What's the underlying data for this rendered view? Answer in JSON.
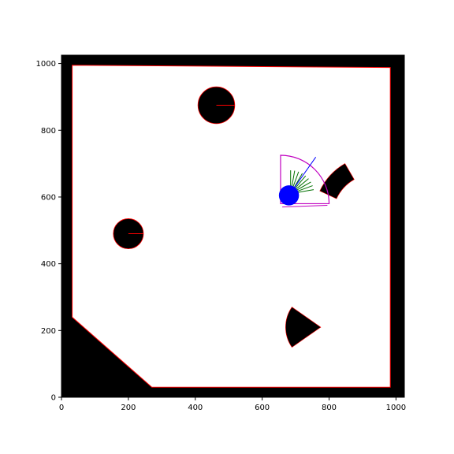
{
  "chart_data": {
    "type": "scatter",
    "title": "",
    "xlabel": "",
    "ylabel": "",
    "xlim": [
      0,
      1025
    ],
    "ylim": [
      0,
      1025
    ],
    "grid": false,
    "x_ticks": [
      0,
      200,
      400,
      600,
      800,
      1000
    ],
    "y_ticks": [
      0,
      200,
      400,
      600,
      800,
      1000
    ],
    "x_tick_labels": [
      "0",
      "200",
      "400",
      "600",
      "800",
      "1000"
    ],
    "y_tick_labels": [
      "0",
      "200",
      "400",
      "600",
      "800",
      "1000"
    ],
    "colors": {
      "obstacle": "#000000",
      "free_space": "#ffffff",
      "boundary": "#ff0000",
      "robot": "#0000ff",
      "sensor_fov": "#c000c0",
      "rays": "#007000"
    },
    "free_space_polygon": [
      [
        32,
        240
      ],
      [
        32,
        995
      ],
      [
        983,
        988
      ],
      [
        983,
        30
      ],
      [
        270,
        30
      ]
    ],
    "circular_obstacles": [
      {
        "name": "circle-top",
        "cx": 463,
        "cy": 875,
        "r": 55
      },
      {
        "name": "circle-left",
        "cx": 200,
        "cy": 490,
        "r": 45
      }
    ],
    "sector_obstacles": [
      {
        "name": "arc-right",
        "cx": 940,
        "cy": 540,
        "r_outer": 185,
        "r_inner": 130,
        "start_deg": 120,
        "end_deg": 155
      },
      {
        "name": "wedge-bottom",
        "cx": 775,
        "cy": 210,
        "r": 105,
        "start_deg": 145,
        "end_deg": 215
      }
    ],
    "robot": {
      "x": 680,
      "y": 605,
      "r": 30,
      "heading_deg": 55
    },
    "sensor": {
      "fov_sector": {
        "cx": 655,
        "cy": 580,
        "r": 145,
        "start_deg": 0,
        "end_deg": 90
      },
      "inner_box": [
        [
          660,
          570
        ],
        [
          795,
          575
        ],
        [
          795,
          575
        ]
      ],
      "ray_angles_deg": [
        10,
        20,
        30,
        40,
        50,
        60,
        70,
        80,
        90
      ],
      "ray_length": 70,
      "ray_origin": {
        "x": 685,
        "y": 610
      }
    }
  }
}
